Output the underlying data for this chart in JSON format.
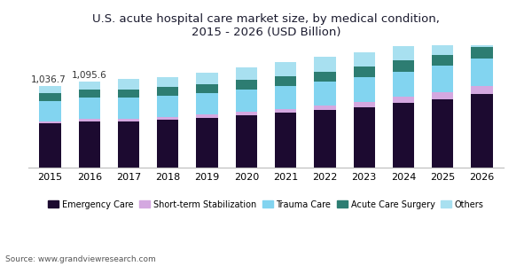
{
  "title": "U.S. acute hospital care market size, by medical condition,\n2015 - 2026 (USD Billion)",
  "years": [
    2015,
    2016,
    2017,
    2018,
    2019,
    2020,
    2021,
    2022,
    2023,
    2024,
    2025,
    2026
  ],
  "categories": [
    "Emergency Care",
    "Short-term Stabilization",
    "Trauma Care",
    "Acute Care Surgery",
    "Others"
  ],
  "colors": [
    "#1c0a30",
    "#d4a8e0",
    "#82d4f0",
    "#2d7d72",
    "#a8e0f0"
  ],
  "data": {
    "Emergency Care": [
      560,
      590,
      590,
      610,
      635,
      665,
      695,
      730,
      770,
      820,
      870,
      930
    ],
    "Short-term Stabilization": [
      30,
      32,
      33,
      36,
      40,
      44,
      50,
      57,
      65,
      75,
      88,
      105
    ],
    "Trauma Care": [
      255,
      265,
      265,
      270,
      275,
      285,
      295,
      305,
      315,
      325,
      335,
      350
    ],
    "Acute Care Surgery": [
      100,
      105,
      105,
      108,
      110,
      115,
      120,
      125,
      130,
      135,
      140,
      145
    ],
    "Others": [
      91.7,
      103.6,
      127,
      126,
      145,
      161,
      175,
      183,
      185,
      180,
      177,
      170
    ]
  },
  "totals_target": [
    1036.7,
    1095.6,
    1120,
    1150,
    1205,
    1270,
    1335,
    1400,
    1465,
    1535,
    1610,
    1700
  ],
  "annotations": {
    "2015": "1,036.7",
    "2016": "1,095.6"
  },
  "source": "Source: www.grandviewresearch.com",
  "title_color": "#1a1a2e",
  "background_color": "#ffffff",
  "bar_width": 0.55,
  "ylim": [
    0,
    1550
  ],
  "figsize": [
    6.0,
    3.0
  ],
  "dpi": 100
}
